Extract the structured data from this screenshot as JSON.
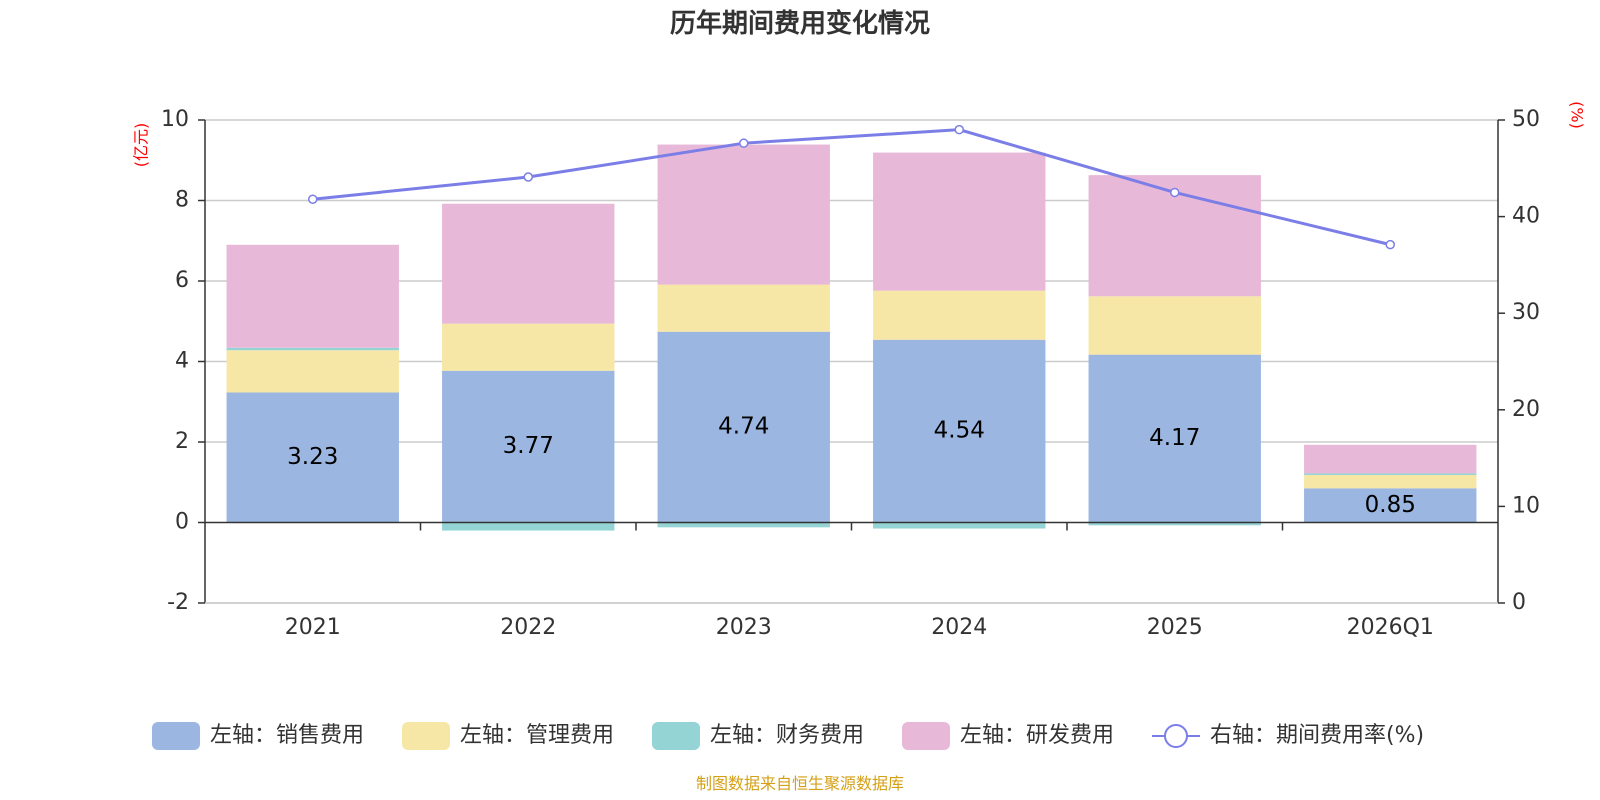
{
  "chart_data": {
    "type": "bar",
    "stacked": true,
    "title": "历年期间费用变化情况",
    "categories": [
      "2021",
      "2022",
      "2023",
      "2024",
      "2025",
      "2026Q1"
    ],
    "left_axis": {
      "unit": "(亿元)",
      "ylim": [
        -2,
        10
      ],
      "ticks": [
        "10",
        "8",
        "6",
        "4",
        "2",
        "0",
        "-2"
      ]
    },
    "right_axis": {
      "unit": "(%)",
      "ylim": [
        0,
        50
      ],
      "ticks": [
        "50",
        "40",
        "30",
        "20",
        "10",
        "0"
      ]
    },
    "series": [
      {
        "name": "左轴：销售费用",
        "color": "#9bb7e1",
        "values": [
          3.23,
          3.77,
          4.74,
          4.54,
          4.17,
          0.85
        ],
        "labels": [
          "3.23",
          "3.77",
          "4.74",
          "4.54",
          "4.17",
          "0.85"
        ]
      },
      {
        "name": "左轴：管理费用",
        "color": "#f7e7a6",
        "values": [
          1.05,
          1.17,
          1.17,
          1.22,
          1.45,
          0.33
        ]
      },
      {
        "name": "左轴：财务费用",
        "color": "#94d4d4",
        "values": [
          0.06,
          -0.2,
          -0.12,
          -0.15,
          -0.07,
          0.04
        ]
      },
      {
        "name": "左轴：研发费用",
        "color": "#e8b8d8",
        "values": [
          2.56,
          2.98,
          3.48,
          3.43,
          3.01,
          0.71
        ]
      }
    ],
    "line": {
      "name": "右轴：期间费用率(%)",
      "color": "#7b7ee6",
      "values": [
        41.8,
        44.1,
        47.6,
        49.0,
        42.5,
        37.1
      ]
    },
    "source": "制图数据来自恒生聚源数据库"
  }
}
